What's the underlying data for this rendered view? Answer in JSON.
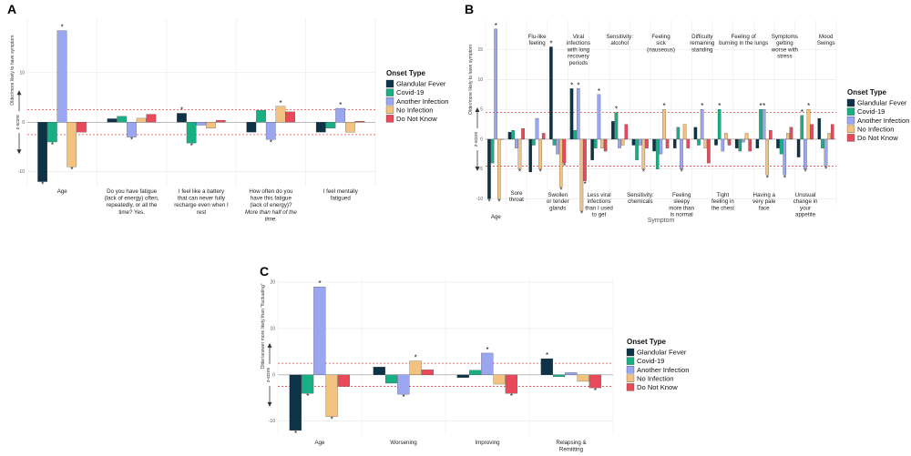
{
  "colors": {
    "Glandular Fever": "#0e3346",
    "Covid-19": "#1aae85",
    "Another Infection": "#9aa6ef",
    "No Infection": "#f2c280",
    "Do Not Know": "#e84a5a"
  },
  "legend_title": "Onset Type",
  "series_names": [
    "Glandular Fever",
    "Covid-19",
    "Another Infection",
    "No Infection",
    "Do Not Know"
  ],
  "chart_data": [
    {
      "panel": "A",
      "type": "bar",
      "ylabel_top": "Older/more likely to have symptom",
      "ylabel_mid": "z-score",
      "ylim": [
        -13,
        21
      ],
      "yticks": [
        -10,
        0,
        10
      ],
      "thresholds": [
        -2.5,
        2.5
      ],
      "categories": [
        [
          "Age"
        ],
        [
          "Do you have fatigue",
          "(lack of energy) often,",
          "repeatedly, or all the",
          "time? Yes."
        ],
        [
          "I feel like a battery",
          "that can never fully",
          "recharge even when I",
          "rest"
        ],
        [
          "How often do you",
          "have this fatigue",
          "(lack of energy)?",
          "More than half of the",
          "time."
        ],
        [
          "I feel mentally",
          "fatigued"
        ]
      ],
      "series": [
        {
          "name": "Glandular Fever",
          "values": [
            -12.0,
            0.7,
            1.8,
            -2.0,
            -2.0
          ]
        },
        {
          "name": "Covid-19",
          "values": [
            -4.0,
            1.2,
            -4.2,
            2.4,
            -1.2
          ]
        },
        {
          "name": "Another Infection",
          "values": [
            18.5,
            -3.0,
            -0.6,
            -3.5,
            2.8
          ]
        },
        {
          "name": "No Infection",
          "values": [
            -9.0,
            0.8,
            -1.2,
            3.2,
            -2.0
          ]
        },
        {
          "name": "Do Not Know",
          "values": [
            -2.0,
            1.6,
            0.4,
            2.1,
            0.2
          ]
        }
      ],
      "stars": [
        [
          1,
          0,
          1,
          0,
          0
        ],
        [
          1,
          0,
          1,
          0,
          0
        ],
        [
          1,
          1,
          0,
          1,
          1
        ],
        [
          1,
          0,
          0,
          1,
          0
        ],
        [
          0,
          0,
          0,
          0,
          0
        ]
      ]
    },
    {
      "panel": "B",
      "type": "bar",
      "ylabel_top": "Older/more likely to have symptom",
      "ylabel_mid": "z-score",
      "xlabel": "Symptom",
      "ylim": [
        -11,
        20
      ],
      "yticks": [
        -10,
        -5,
        0,
        5,
        10,
        15
      ],
      "thresholds": [
        -4.5,
        4.5
      ],
      "categories_top": [
        [],
        [],
        [
          "Flu-like",
          "feeling"
        ],
        [],
        [
          "Viral",
          "infections",
          "with long",
          "recovery",
          "periods"
        ],
        [],
        [
          "Sensitivity:",
          "alcohol"
        ],
        [],
        [
          "Feeling",
          "sick",
          "(nauseous)"
        ],
        [],
        [
          "Difficulty",
          "remaining",
          "standing"
        ],
        [],
        [
          "Feeling of",
          "burning in the lungs"
        ],
        [],
        [
          "Symptoms",
          "getting",
          "worse with",
          "stress"
        ],
        [],
        [
          "Mood",
          "Swings"
        ]
      ],
      "categories_bottom": [
        [
          "Age"
        ],
        [
          "Sore",
          "throat"
        ],
        [],
        [
          "Swollen",
          "or tender",
          "glands"
        ],
        [],
        [
          "Less viral",
          "infections",
          "than I used",
          "to get"
        ],
        [],
        [
          "Sensitivity:",
          "chemicals"
        ],
        [],
        [
          "Feeling",
          "sleepy",
          "more than",
          "is normal"
        ],
        [],
        [
          "Tight",
          "feeling in",
          "the chest"
        ],
        [],
        [
          "Having a",
          "very pale",
          "face"
        ],
        [],
        [
          "Unusual",
          "change in",
          "your",
          "appetite"
        ],
        []
      ],
      "series": [
        {
          "name": "Glandular Fever",
          "values": [
            -10,
            1.2,
            -5.5,
            15.5,
            8.5,
            -3.5,
            3.0,
            -1.0,
            -2.0,
            -1.5,
            2.0,
            -1.0,
            -1.5,
            -1.5,
            -1.5,
            -3.0,
            3.5
          ]
        },
        {
          "name": "Covid-19",
          "values": [
            -4.0,
            1.5,
            -1.0,
            -1.0,
            1.5,
            -1.5,
            4.5,
            -3.5,
            -5.0,
            2.0,
            -1.0,
            5.0,
            -2.0,
            5.0,
            -2.5,
            4.0,
            -1.5
          ]
        },
        {
          "name": "Another Infection",
          "values": [
            18.5,
            -1.5,
            3.5,
            -2.5,
            8.5,
            7.5,
            -1.5,
            -1.0,
            -2.5,
            -5.0,
            5.0,
            -2.0,
            -0.5,
            5.0,
            -6.0,
            -5.0,
            -4.5
          ]
        },
        {
          "name": "No Infection",
          "values": [
            -10,
            -5.0,
            -5.0,
            -8.0,
            -12.0,
            -1.5,
            -1.0,
            -5.0,
            5.0,
            2.5,
            -1.5,
            1.0,
            1.0,
            -6.0,
            1.0,
            5.0,
            1.0
          ]
        },
        {
          "name": "Do Not Know",
          "values": [
            0,
            1.8,
            1.0,
            -4.0,
            -7.0,
            -2.0,
            2.5,
            -1.5,
            -1.5,
            -1.5,
            -4.0,
            -1.0,
            -2.0,
            1.5,
            2.0,
            2.5,
            2.5
          ]
        }
      ],
      "stars": [
        [
          1,
          0,
          0,
          1,
          1,
          0,
          0,
          0,
          0,
          0,
          0,
          0,
          0,
          0,
          0,
          0,
          0
        ],
        [
          0,
          0,
          0,
          0,
          0,
          0,
          1,
          0,
          0,
          0,
          0,
          1,
          0,
          1,
          0,
          1,
          0
        ],
        [
          1,
          0,
          0,
          0,
          1,
          1,
          0,
          0,
          0,
          1,
          1,
          0,
          0,
          1,
          1,
          1,
          1
        ],
        [
          1,
          1,
          1,
          1,
          1,
          0,
          0,
          1,
          1,
          0,
          0,
          0,
          0,
          1,
          0,
          1,
          0
        ],
        [
          0,
          0,
          0,
          1,
          1,
          0,
          0,
          0,
          0,
          0,
          0,
          0,
          0,
          0,
          0,
          0,
          0
        ]
      ]
    },
    {
      "panel": "C",
      "type": "bar",
      "ylabel_top": "Older/answer more likely than \"fluctuating\"",
      "ylabel_mid": "z-score",
      "ylim": [
        -13,
        21
      ],
      "yticks": [
        -10,
        0,
        10,
        20
      ],
      "thresholds": [
        -2.5,
        2.5
      ],
      "categories": [
        [
          "Age"
        ],
        [
          "Worsening"
        ],
        [
          "Improving"
        ],
        [
          "Relapsing &",
          "Remitting"
        ]
      ],
      "series": [
        {
          "name": "Glandular Fever",
          "values": [
            -12.0,
            1.7,
            -0.6,
            3.5
          ]
        },
        {
          "name": "Covid-19",
          "values": [
            -4.0,
            -1.8,
            1.0,
            -0.4
          ]
        },
        {
          "name": "Another Infection",
          "values": [
            19.0,
            -4.2,
            4.7,
            0.5
          ]
        },
        {
          "name": "No Infection",
          "values": [
            -9.0,
            3.0,
            -2.0,
            -1.4
          ]
        },
        {
          "name": "Do Not Know",
          "values": [
            -2.5,
            1.1,
            -4.0,
            -2.8
          ]
        }
      ],
      "stars": [
        [
          1,
          0,
          0,
          1
        ],
        [
          1,
          0,
          0,
          0
        ],
        [
          1,
          1,
          1,
          0
        ],
        [
          1,
          1,
          0,
          0
        ],
        [
          0,
          0,
          1,
          1
        ]
      ]
    }
  ]
}
